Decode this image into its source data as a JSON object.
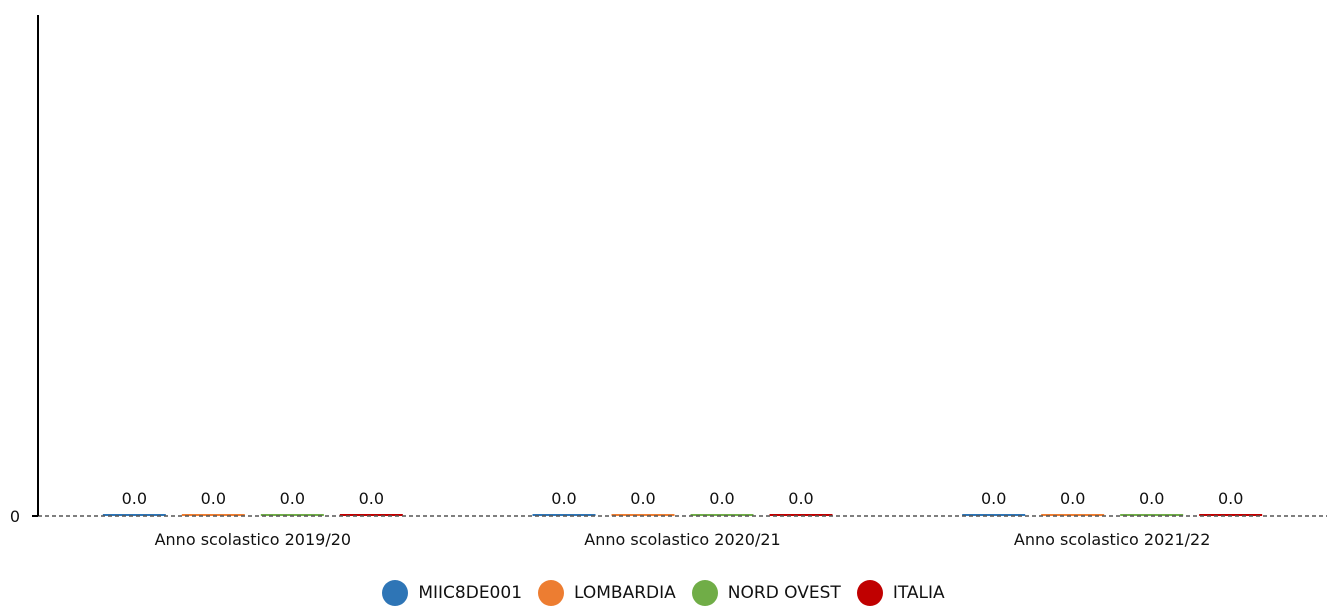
{
  "chart_data": {
    "type": "bar",
    "categories": [
      "Anno scolastico 2019/20",
      "Anno scolastico 2020/21",
      "Anno scolastico 2021/22"
    ],
    "series": [
      {
        "name": "MIIC8DE001",
        "color": "#2e75b6",
        "values": [
          0.0,
          0.0,
          0.0
        ],
        "labels": [
          "0.0",
          "0.0",
          "0.0"
        ]
      },
      {
        "name": "LOMBARDIA",
        "color": "#ed7d31",
        "values": [
          0.0,
          0.0,
          0.0
        ],
        "labels": [
          "0.0",
          "0.0",
          "0.0"
        ]
      },
      {
        "name": "NORD OVEST",
        "color": "#70ad47",
        "values": [
          0.0,
          0.0,
          0.0
        ],
        "labels": [
          "0.0",
          "0.0",
          "0.0"
        ]
      },
      {
        "name": "ITALIA",
        "color": "#c00000",
        "values": [
          0.0,
          0.0,
          0.0
        ],
        "labels": [
          "0.0",
          "0.0",
          "0.0"
        ]
      }
    ],
    "yticks": [
      "0"
    ],
    "ylim": [
      0,
      1
    ],
    "grid": false,
    "legend_position": "bottom"
  }
}
